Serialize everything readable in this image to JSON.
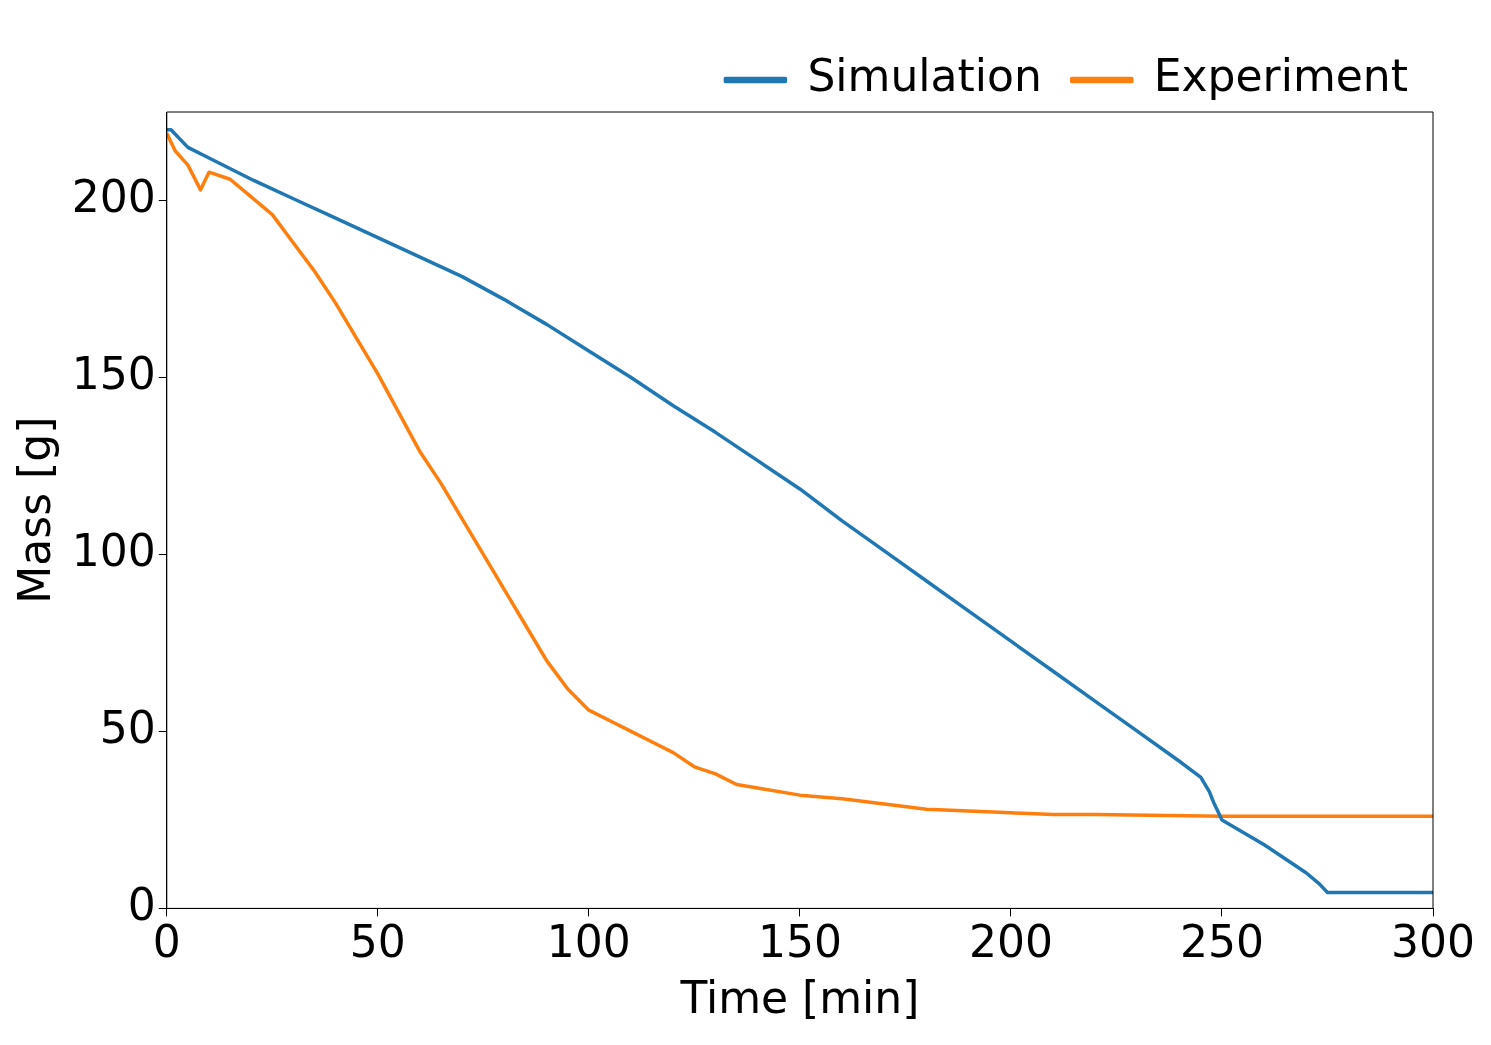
{
  "chart_data": {
    "type": "line",
    "xlabel": "Time [min]",
    "ylabel": "Mass [g]",
    "xlim": [
      0,
      300
    ],
    "ylim": [
      0,
      225
    ],
    "xticks": [
      0,
      50,
      100,
      150,
      200,
      250,
      300
    ],
    "yticks": [
      0,
      50,
      100,
      150,
      200
    ],
    "grid": false,
    "legend": "top right",
    "marker": "none",
    "line_style": "solid",
    "series": [
      {
        "name": "Simulation",
        "color": "#1f77b4",
        "x": [
          0,
          1,
          5,
          10,
          20,
          30,
          40,
          50,
          60,
          70,
          80,
          90,
          100,
          110,
          120,
          130,
          140,
          150,
          160,
          170,
          180,
          190,
          200,
          210,
          220,
          230,
          240,
          245,
          247,
          248,
          250,
          260,
          270,
          273,
          275,
          300
        ],
        "values": [
          220,
          220,
          215,
          212,
          206,
          200.5,
          195,
          189.5,
          184,
          178.5,
          172,
          165,
          157.5,
          150,
          142,
          134.5,
          126.5,
          118.5,
          109.5,
          101,
          92.5,
          84,
          75.5,
          67,
          58.5,
          50,
          41.5,
          37,
          33,
          30,
          25,
          18,
          10,
          7,
          4.5,
          4.5
        ]
      },
      {
        "name": "Experiment",
        "color": "#ff7f0e",
        "x": [
          0,
          2,
          5,
          8,
          10,
          15,
          20,
          25,
          30,
          35,
          40,
          45,
          50,
          55,
          60,
          65,
          70,
          75,
          80,
          85,
          90,
          95,
          100,
          105,
          110,
          115,
          120,
          125,
          130,
          135,
          140,
          150,
          160,
          170,
          180,
          190,
          200,
          210,
          220,
          250,
          280,
          300
        ],
        "values": [
          219,
          214,
          210,
          203,
          208,
          206,
          201,
          196,
          188,
          180,
          171,
          161,
          151,
          140,
          129,
          120,
          110,
          100,
          90,
          80,
          70,
          62,
          56,
          53,
          50,
          47,
          44,
          40,
          38,
          35,
          34,
          32,
          31,
          29.5,
          28,
          27.5,
          27,
          26.5,
          26.5,
          26,
          26,
          26
        ]
      }
    ]
  }
}
